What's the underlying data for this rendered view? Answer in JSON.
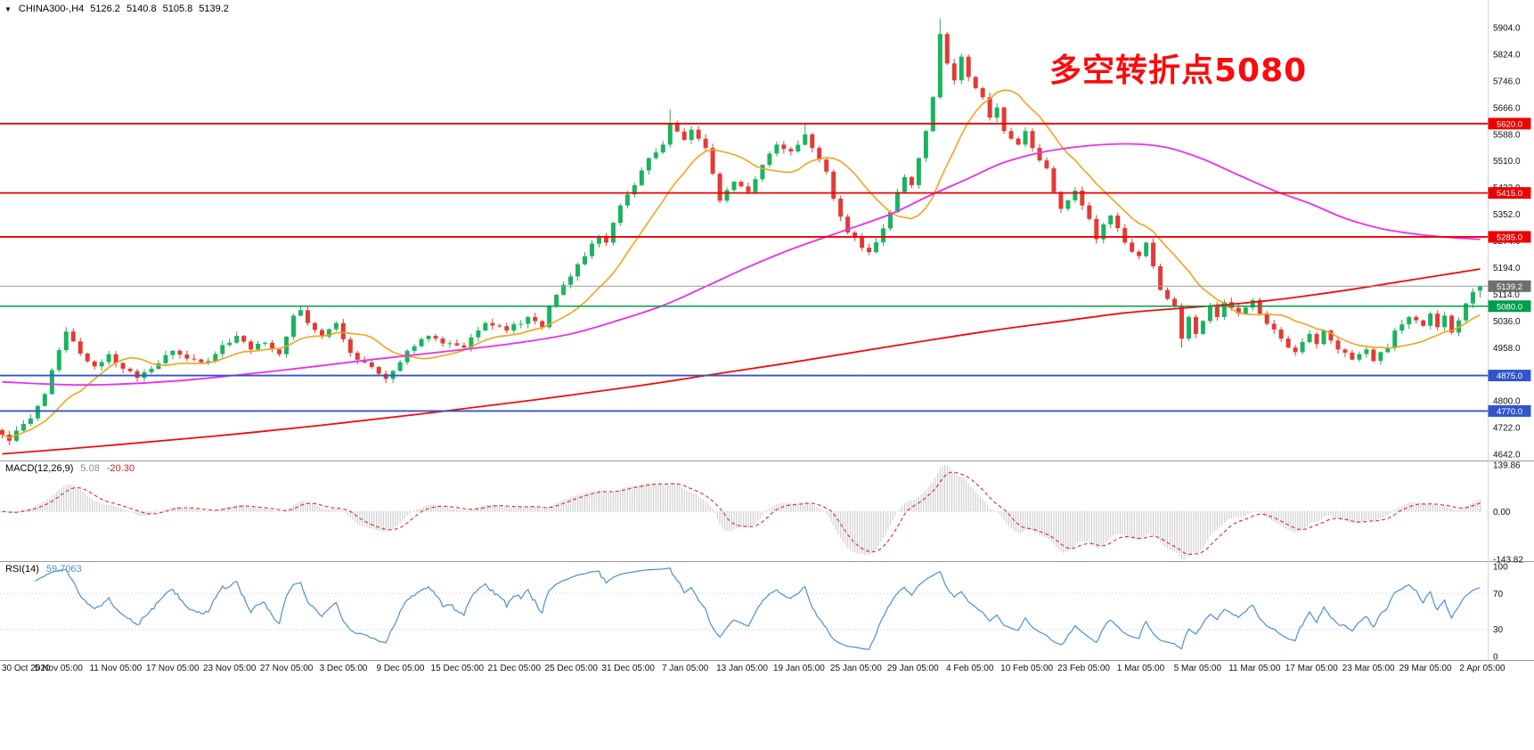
{
  "header": {
    "collapse_icon": "▼",
    "symbol_period": "CHINA300-,H4",
    "open": "5126.2",
    "high": "5140.8",
    "low": "5105.8",
    "close": "5139.2"
  },
  "annotation": {
    "text": "多空转折点5080",
    "color": "#fb0b0b"
  },
  "colors": {
    "bg": "#ffffff",
    "up": "#19b45f",
    "down": "#e23b36",
    "ma_fast": "#f7a21b",
    "ma_mid": "#ea30e8",
    "ma_slow": "#f40b0b",
    "level_red": "#ee0000",
    "level_green": "#009e4c",
    "level_blue": "#3156c9",
    "price_line": "#9b9b9b",
    "price_tag_bg": "#6f6f6f",
    "hist": "#cccccc",
    "macd_signal": "#e02828",
    "rsi_line": "#4a90d0",
    "separator": "#9b9b9b",
    "axis_text": "#111111",
    "grid_dotted": "#c8c8c8"
  },
  "main_axis": {
    "ticks": [
      "5904.0",
      "5824.0",
      "5746.0",
      "5666.0",
      "5588.0",
      "5510.0",
      "5432.0",
      "5352.0",
      "5274.0",
      "5194.0",
      "5114.0",
      "5036.0",
      "4958.0",
      "4880.0",
      "4800.0",
      "4722.0",
      "4642.0"
    ]
  },
  "levels": [
    {
      "price": 5620.0,
      "label": "5620.0",
      "color_key": "red"
    },
    {
      "price": 5415.0,
      "label": "5415.0",
      "color_key": "red"
    },
    {
      "price": 5285.0,
      "label": "5285.0",
      "color_key": "red"
    },
    {
      "price": 5080.0,
      "label": "5080.0",
      "color_key": "green"
    },
    {
      "price": 4875.0,
      "label": "4875.0",
      "color_key": "blue"
    },
    {
      "price": 4770.0,
      "label": "4770.0",
      "color_key": "blue"
    }
  ],
  "current_price": {
    "value": 5139.2,
    "label": "5139.2"
  },
  "macd": {
    "label": "MACD(12,26,9)",
    "value_main": "5.08",
    "value_signal": "-20.30",
    "axis_ticks": [
      "139.86",
      "0.00",
      "-143.82"
    ]
  },
  "rsi": {
    "label": "RSI(14)",
    "value": "59.7063",
    "axis_ticks": [
      "100",
      "70",
      "30",
      "0"
    ],
    "levels": [
      70,
      30
    ]
  },
  "dates": [
    "30 Oct 2020",
    "5 Nov 05:00",
    "11 Nov 05:00",
    "17 Nov 05:00",
    "23 Nov 05:00",
    "27 Nov 05:00",
    "3 Dec 05:00",
    "9 Dec 05:00",
    "15 Dec 05:00",
    "21 Dec 05:00",
    "25 Dec 05:00",
    "31 Dec 05:00",
    "7 Jan 05:00",
    "13 Jan 05:00",
    "19 Jan 05:00",
    "25 Jan 05:00",
    "29 Jan 05:00",
    "4 Feb 05:00",
    "10 Feb 05:00",
    "23 Feb 05:00",
    "1 Mar 05:00",
    "5 Mar 05:00",
    "11 Mar 05:00",
    "17 Mar 05:00",
    "23 Mar 05:00",
    "29 Mar 05:00",
    "2 Apr 05:00"
  ],
  "chart_data": {
    "type": "candlestick",
    "title": "CHINA300- H4",
    "price_range": [
      4642,
      5904
    ],
    "bars_total": 209,
    "last_bar_ohlc": {
      "open": 5126.2,
      "high": 5140.8,
      "low": 5105.8,
      "close": 5139.2
    },
    "horizontal_levels": [
      5620.0,
      5415.0,
      5285.0,
      5080.0,
      4875.0,
      4770.0
    ],
    "annotation": "多空转折点5080",
    "close_path_keyframes": [
      [
        0,
        4700
      ],
      [
        1,
        4682
      ],
      [
        2,
        4712
      ],
      [
        4,
        4748
      ],
      [
        6,
        4820
      ],
      [
        8,
        4950
      ],
      [
        9,
        5005
      ],
      [
        11,
        4940
      ],
      [
        13,
        4902
      ],
      [
        15,
        4938
      ],
      [
        17,
        4895
      ],
      [
        19,
        4868
      ],
      [
        21,
        4895
      ],
      [
        24,
        4948
      ],
      [
        26,
        4925
      ],
      [
        29,
        4918
      ],
      [
        31,
        4965
      ],
      [
        33,
        4992
      ],
      [
        35,
        4952
      ],
      [
        37,
        4972
      ],
      [
        39,
        4938
      ],
      [
        41,
        5052
      ],
      [
        42,
        5068
      ],
      [
        43,
        5030
      ],
      [
        45,
        4990
      ],
      [
        47,
        5030
      ],
      [
        49,
        4942
      ],
      [
        52,
        4900
      ],
      [
        54,
        4865
      ],
      [
        57,
        4948
      ],
      [
        60,
        4992
      ],
      [
        62,
        4970
      ],
      [
        65,
        4958
      ],
      [
        68,
        5030
      ],
      [
        71,
        5008
      ],
      [
        74,
        5048
      ],
      [
        76,
        5018
      ],
      [
        77,
        5078
      ],
      [
        80,
        5168
      ],
      [
        82,
        5228
      ],
      [
        84,
        5288
      ],
      [
        85,
        5268
      ],
      [
        87,
        5378
      ],
      [
        89,
        5438
      ],
      [
        91,
        5518
      ],
      [
        93,
        5558
      ],
      [
        94,
        5618
      ],
      [
        96,
        5572
      ],
      [
        97,
        5602
      ],
      [
        99,
        5548
      ],
      [
        100,
        5472
      ],
      [
        101,
        5392
      ],
      [
        103,
        5448
      ],
      [
        105,
        5418
      ],
      [
        107,
        5498
      ],
      [
        109,
        5558
      ],
      [
        111,
        5538
      ],
      [
        113,
        5588
      ],
      [
        114,
        5548
      ],
      [
        116,
        5478
      ],
      [
        117,
        5398
      ],
      [
        119,
        5298
      ],
      [
        122,
        5240
      ],
      [
        124,
        5310
      ],
      [
        125,
        5358
      ],
      [
        126,
        5418
      ],
      [
        127,
        5462
      ],
      [
        128,
        5438
      ],
      [
        129,
        5518
      ],
      [
        130,
        5598
      ],
      [
        131,
        5698
      ],
      [
        132,
        5885
      ],
      [
        133,
        5798
      ],
      [
        134,
        5748
      ],
      [
        135,
        5818
      ],
      [
        136,
        5758
      ],
      [
        138,
        5698
      ],
      [
        139,
        5638
      ],
      [
        140,
        5668
      ],
      [
        141,
        5598
      ],
      [
        143,
        5558
      ],
      [
        144,
        5598
      ],
      [
        145,
        5548
      ],
      [
        147,
        5488
      ],
      [
        148,
        5418
      ],
      [
        149,
        5368
      ],
      [
        151,
        5422
      ],
      [
        153,
        5338
      ],
      [
        154,
        5278
      ],
      [
        155,
        5322
      ],
      [
        156,
        5348
      ],
      [
        158,
        5268
      ],
      [
        160,
        5228
      ],
      [
        161,
        5268
      ],
      [
        162,
        5198
      ],
      [
        163,
        5128
      ],
      [
        165,
        5078
      ],
      [
        166,
        4984
      ],
      [
        167,
        5048
      ],
      [
        168,
        4998
      ],
      [
        170,
        5078
      ],
      [
        171,
        5048
      ],
      [
        172,
        5092
      ],
      [
        174,
        5058
      ],
      [
        176,
        5098
      ],
      [
        177,
        5058
      ],
      [
        178,
        5028
      ],
      [
        180,
        4984
      ],
      [
        182,
        4944
      ],
      [
        184,
        4998
      ],
      [
        185,
        4968
      ],
      [
        186,
        5008
      ],
      [
        188,
        4952
      ],
      [
        190,
        4922
      ],
      [
        192,
        4952
      ],
      [
        193,
        4918
      ],
      [
        195,
        4958
      ],
      [
        196,
        5008
      ],
      [
        198,
        5048
      ],
      [
        200,
        5022
      ],
      [
        201,
        5058
      ],
      [
        202,
        5018
      ],
      [
        203,
        5052
      ],
      [
        204,
        5002
      ],
      [
        205,
        5038
      ],
      [
        206,
        5088
      ],
      [
        207,
        5122
      ],
      [
        208,
        5139.2
      ]
    ],
    "wick_overrides": {
      "9": {
        "high": 5018
      },
      "94": {
        "high": 5662
      },
      "113": {
        "high": 5622
      },
      "132": {
        "high": 5930
      },
      "166": {
        "low": 4958
      },
      "208": {
        "open": 5126.2,
        "high": 5140.8,
        "low": 5105.8,
        "close": 5139.2
      }
    },
    "ma_mid_keyframes": [
      [
        0,
        4856
      ],
      [
        12,
        4847
      ],
      [
        25,
        4860
      ],
      [
        40,
        4892
      ],
      [
        52,
        4922
      ],
      [
        62,
        4945
      ],
      [
        72,
        4970
      ],
      [
        80,
        4998
      ],
      [
        87,
        5040
      ],
      [
        93,
        5082
      ],
      [
        99,
        5138
      ],
      [
        105,
        5196
      ],
      [
        111,
        5248
      ],
      [
        118,
        5300
      ],
      [
        125,
        5352
      ],
      [
        130,
        5402
      ],
      [
        136,
        5458
      ],
      [
        141,
        5505
      ],
      [
        147,
        5538
      ],
      [
        153,
        5555
      ],
      [
        159,
        5560
      ],
      [
        164,
        5549
      ],
      [
        169,
        5515
      ],
      [
        174,
        5468
      ],
      [
        179,
        5422
      ],
      [
        184,
        5384
      ],
      [
        189,
        5340
      ],
      [
        194,
        5310
      ],
      [
        199,
        5293
      ],
      [
        204,
        5283
      ],
      [
        208,
        5278
      ]
    ],
    "ma_slow_keyframes": [
      [
        0,
        4643
      ],
      [
        15,
        4668
      ],
      [
        30,
        4696
      ],
      [
        45,
        4728
      ],
      [
        60,
        4764
      ],
      [
        75,
        4803
      ],
      [
        90,
        4846
      ],
      [
        100,
        4878
      ],
      [
        110,
        4910
      ],
      [
        120,
        4944
      ],
      [
        130,
        4978
      ],
      [
        140,
        5010
      ],
      [
        150,
        5038
      ],
      [
        158,
        5060
      ],
      [
        166,
        5074
      ],
      [
        172,
        5084
      ],
      [
        178,
        5096
      ],
      [
        184,
        5112
      ],
      [
        190,
        5130
      ],
      [
        196,
        5150
      ],
      [
        202,
        5170
      ],
      [
        208,
        5190
      ]
    ],
    "indicators": {
      "macd": {
        "params": "12,26,9",
        "main": 5.08,
        "signal": -20.3,
        "range": [
          -143.82,
          139.86
        ]
      },
      "rsi": {
        "params": "14",
        "value": 59.7063,
        "range": [
          0,
          100
        ],
        "levels": [
          70,
          30
        ]
      }
    }
  }
}
